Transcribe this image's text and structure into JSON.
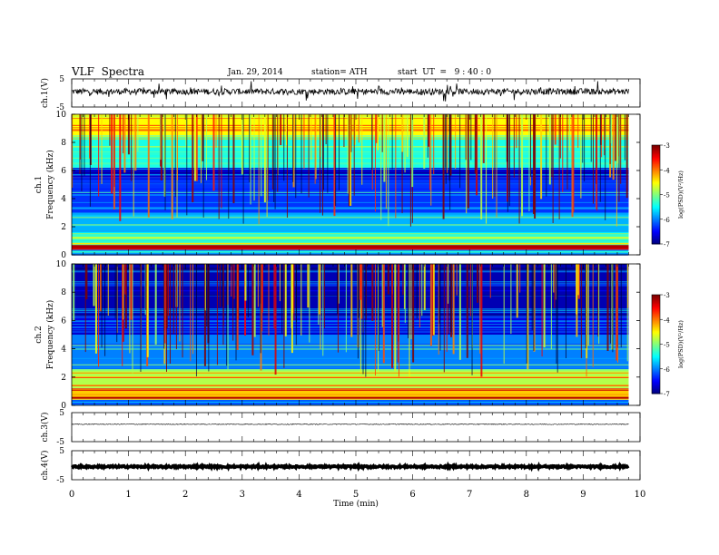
{
  "header": {
    "title": "VLF  Spectra",
    "date": "Jan. 29, 2014",
    "station": "station= ATH",
    "start": "start  UT  =   9 : 40 : 0"
  },
  "chart_data": [
    {
      "type": "line",
      "name": "ch1-waveform",
      "ylabel": "ch.1(V)",
      "ylim": [
        -5,
        5
      ],
      "yticks": [
        "5",
        "-5"
      ],
      "x_range_min": [
        0,
        9.8
      ],
      "approx_level": 0,
      "description_values": {
        "baseline_v": 0.5,
        "noise_amplitude_v": 1.5
      }
    },
    {
      "type": "heatmap",
      "name": "ch1-spectrogram",
      "ylabel": "ch.1\nFrequency  (kHz)",
      "ylabel_top": "ch.1",
      "ylabel_bottom": "Frequency  (kHz)",
      "ylim": [
        0,
        10
      ],
      "yticks": [
        "0",
        "2",
        "4",
        "6",
        "8",
        "10"
      ],
      "x_range_min": [
        0,
        9.8
      ],
      "colorbar": {
        "label": "log(PSD)(V²/Hz)",
        "range": [
          -7,
          -3
        ],
        "ticks": [
          "-3",
          "-4",
          "-5",
          "-6",
          "-7"
        ]
      },
      "bands_khz_logpsd": [
        {
          "f": [
            0.0,
            0.4
          ],
          "v": -6.0
        },
        {
          "f": [
            0.4,
            0.7
          ],
          "v": -3.3
        },
        {
          "f": [
            0.7,
            1.5
          ],
          "v": -5.3
        },
        {
          "f": [
            1.5,
            3.0
          ],
          "v": -5.8
        },
        {
          "f": [
            3.0,
            5.5
          ],
          "v": -6.3
        },
        {
          "f": [
            5.5,
            6.2
          ],
          "v": -6.7
        },
        {
          "f": [
            6.2,
            8.5
          ],
          "v": -5.4
        },
        {
          "f": [
            8.5,
            10.0
          ],
          "v": -4.5
        }
      ]
    },
    {
      "type": "heatmap",
      "name": "ch2-spectrogram",
      "ylabel": "ch.2\nFrequency  (kHz)",
      "ylabel_top": "ch.2",
      "ylabel_bottom": "Frequency  (kHz)",
      "ylim": [
        0,
        10
      ],
      "yticks": [
        "0",
        "2",
        "4",
        "6",
        "8",
        "10"
      ],
      "x_range_min": [
        0,
        9.8
      ],
      "colorbar": {
        "label": "log(PSD)(V²/Hz)",
        "range": [
          -7,
          -3
        ],
        "ticks": [
          "-3",
          "-4",
          "-5",
          "-6",
          "-7"
        ]
      },
      "bands_khz_logpsd": [
        {
          "f": [
            0.0,
            0.4
          ],
          "v": -6.2
        },
        {
          "f": [
            0.4,
            1.2
          ],
          "v": -4.3
        },
        {
          "f": [
            1.2,
            2.5
          ],
          "v": -4.8
        },
        {
          "f": [
            2.5,
            5.0
          ],
          "v": -6.0
        },
        {
          "f": [
            5.0,
            6.2
          ],
          "v": -6.6
        },
        {
          "f": [
            6.2,
            10.0
          ],
          "v": -6.8
        }
      ]
    },
    {
      "type": "line",
      "name": "ch3-waveform",
      "ylabel": "ch.3(V)",
      "ylim": [
        -5,
        5
      ],
      "yticks": [
        "5",
        "-5"
      ],
      "x_range_min": [
        0,
        9.8
      ],
      "approx_level": 1.0
    },
    {
      "type": "line",
      "name": "ch4-waveform",
      "ylabel": "ch.4(V)",
      "ylim": [
        -5,
        5
      ],
      "yticks": [
        "5",
        "-5"
      ],
      "x_range_min": [
        0,
        9.8
      ],
      "approx_level": -0.5
    }
  ],
  "xaxis": {
    "label": "Time  (min)",
    "ticks": [
      "0",
      "1",
      "2",
      "3",
      "4",
      "5",
      "6",
      "7",
      "8",
      "9",
      "10"
    ],
    "range": [
      0,
      10
    ]
  },
  "colors": {
    "frame": "#000000",
    "trace": "#000000"
  }
}
